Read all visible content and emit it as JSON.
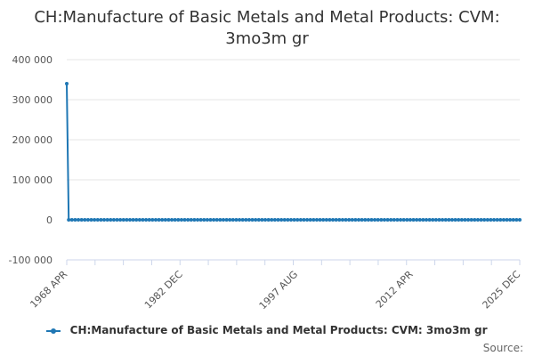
{
  "chart_data": {
    "type": "line",
    "title": "CH:Manufacture of Basic Metals and Metal Products: CVM:",
    "title_line2": "3mo3m gr",
    "y_ticks": [
      "400 000",
      "300 000",
      "200 000",
      "100 000",
      "0",
      "-100 000"
    ],
    "y_tick_values": [
      400000,
      300000,
      200000,
      100000,
      0,
      -100000
    ],
    "ylim": [
      -100000,
      400000
    ],
    "x_ticks": [
      "1968 APR",
      "1982 DEC",
      "1997 AUG",
      "2012 APR",
      "2025 DEC"
    ],
    "x_tick_values": [
      1968.25,
      1982.917,
      1997.583,
      2012.25,
      2025.917
    ],
    "xlim": [
      1968.25,
      2025.917
    ],
    "grid": true,
    "legend_position": "bottom",
    "series": [
      {
        "name": "CH:Manufacture of Basic Metals and Metal Products: CVM: 3mo3m gr",
        "color": "#1f77b4",
        "points": [
          {
            "x": 1968.25,
            "y": 340000
          },
          {
            "x": 1968.5,
            "y": 0
          },
          {
            "x": 2025.917,
            "y": 0
          }
        ]
      }
    ]
  },
  "legend_label": "CH:Manufacture of Basic Metals and Metal Products: CVM: 3mo3m gr",
  "source_label": "Source:"
}
